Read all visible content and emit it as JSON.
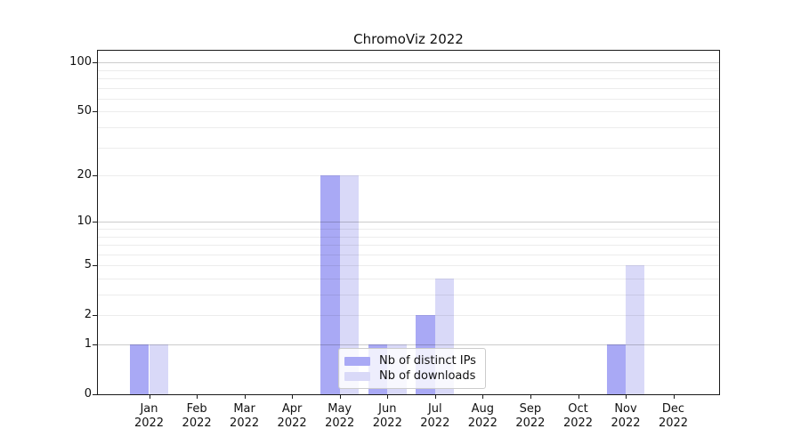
{
  "figure": {
    "background": "#ffffff"
  },
  "chart_data": {
    "type": "bar",
    "title": "ChromoViz 2022",
    "categories": [
      "Jan 2022",
      "Feb 2022",
      "Mar 2022",
      "Apr 2022",
      "May 2022",
      "Jun 2022",
      "Jul 2022",
      "Aug 2022",
      "Sep 2022",
      "Oct 2022",
      "Nov 2022",
      "Dec 2022"
    ],
    "series": [
      {
        "name": "Nb of distinct IPs",
        "color": "#a9a9f5",
        "values": [
          1,
          0,
          0,
          0,
          20,
          1,
          2,
          0,
          0,
          0,
          1,
          0
        ]
      },
      {
        "name": "Nb of downloads",
        "color": "#d9d9f8",
        "values": [
          1,
          0,
          0,
          0,
          20,
          1,
          4,
          0,
          0,
          0,
          5,
          0
        ]
      }
    ],
    "xlabel": "",
    "ylabel": "",
    "yticks": [
      0,
      1,
      2,
      5,
      10,
      20,
      50,
      100
    ],
    "yscale": "log1p",
    "ylim": [
      0,
      118
    ],
    "grid": "horizontal-log-minor",
    "legend_position": "lower center",
    "colors": {
      "decade_gridline": "#cbcbcb",
      "minor_gridline": "#ececec",
      "spine": "#1a1a1a",
      "text": "#111111",
      "legend_border": "#cccccc"
    }
  }
}
